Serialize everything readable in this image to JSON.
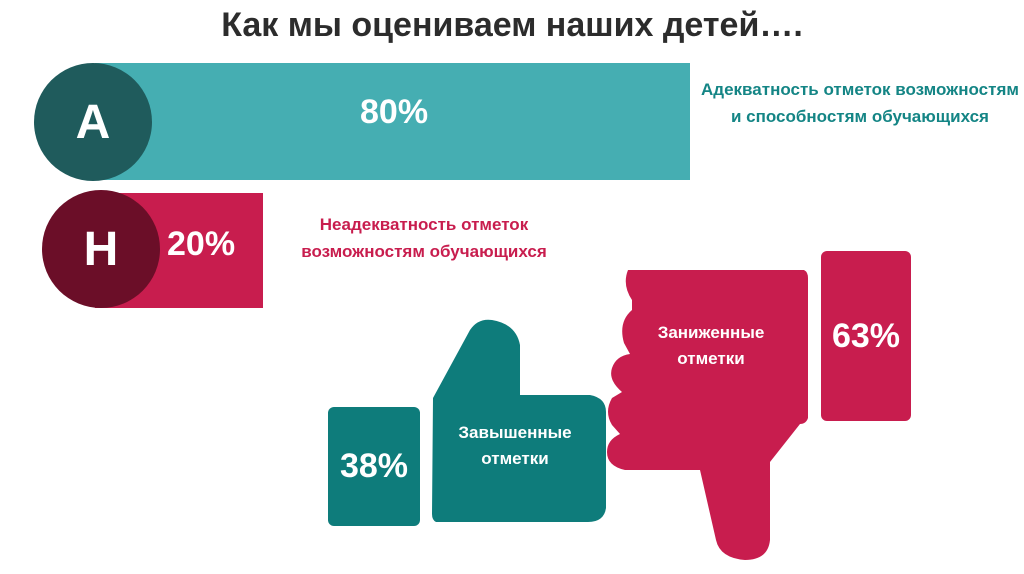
{
  "title": "Как мы оцениваем наших детей….",
  "adequate": {
    "letter": "А",
    "percent": "80%",
    "caption": "Адекватность отметок возможностям и способностям обучающихся",
    "color": "#45aeb2",
    "value": 80
  },
  "inadequate": {
    "letter": "Н",
    "percent": "20%",
    "caption": "Неадекватность отметок возможностям обучающихся",
    "color": "#c81d4e",
    "value": 20
  },
  "overstated": {
    "label": "Завышенные отметки",
    "percent": "38%",
    "icon": "thumbs-up-icon",
    "color": "#0e7c7b"
  },
  "understated": {
    "label": "Заниженные отметки",
    "percent": "63%",
    "icon": "thumbs-down-icon",
    "color": "#c81d4e"
  }
}
